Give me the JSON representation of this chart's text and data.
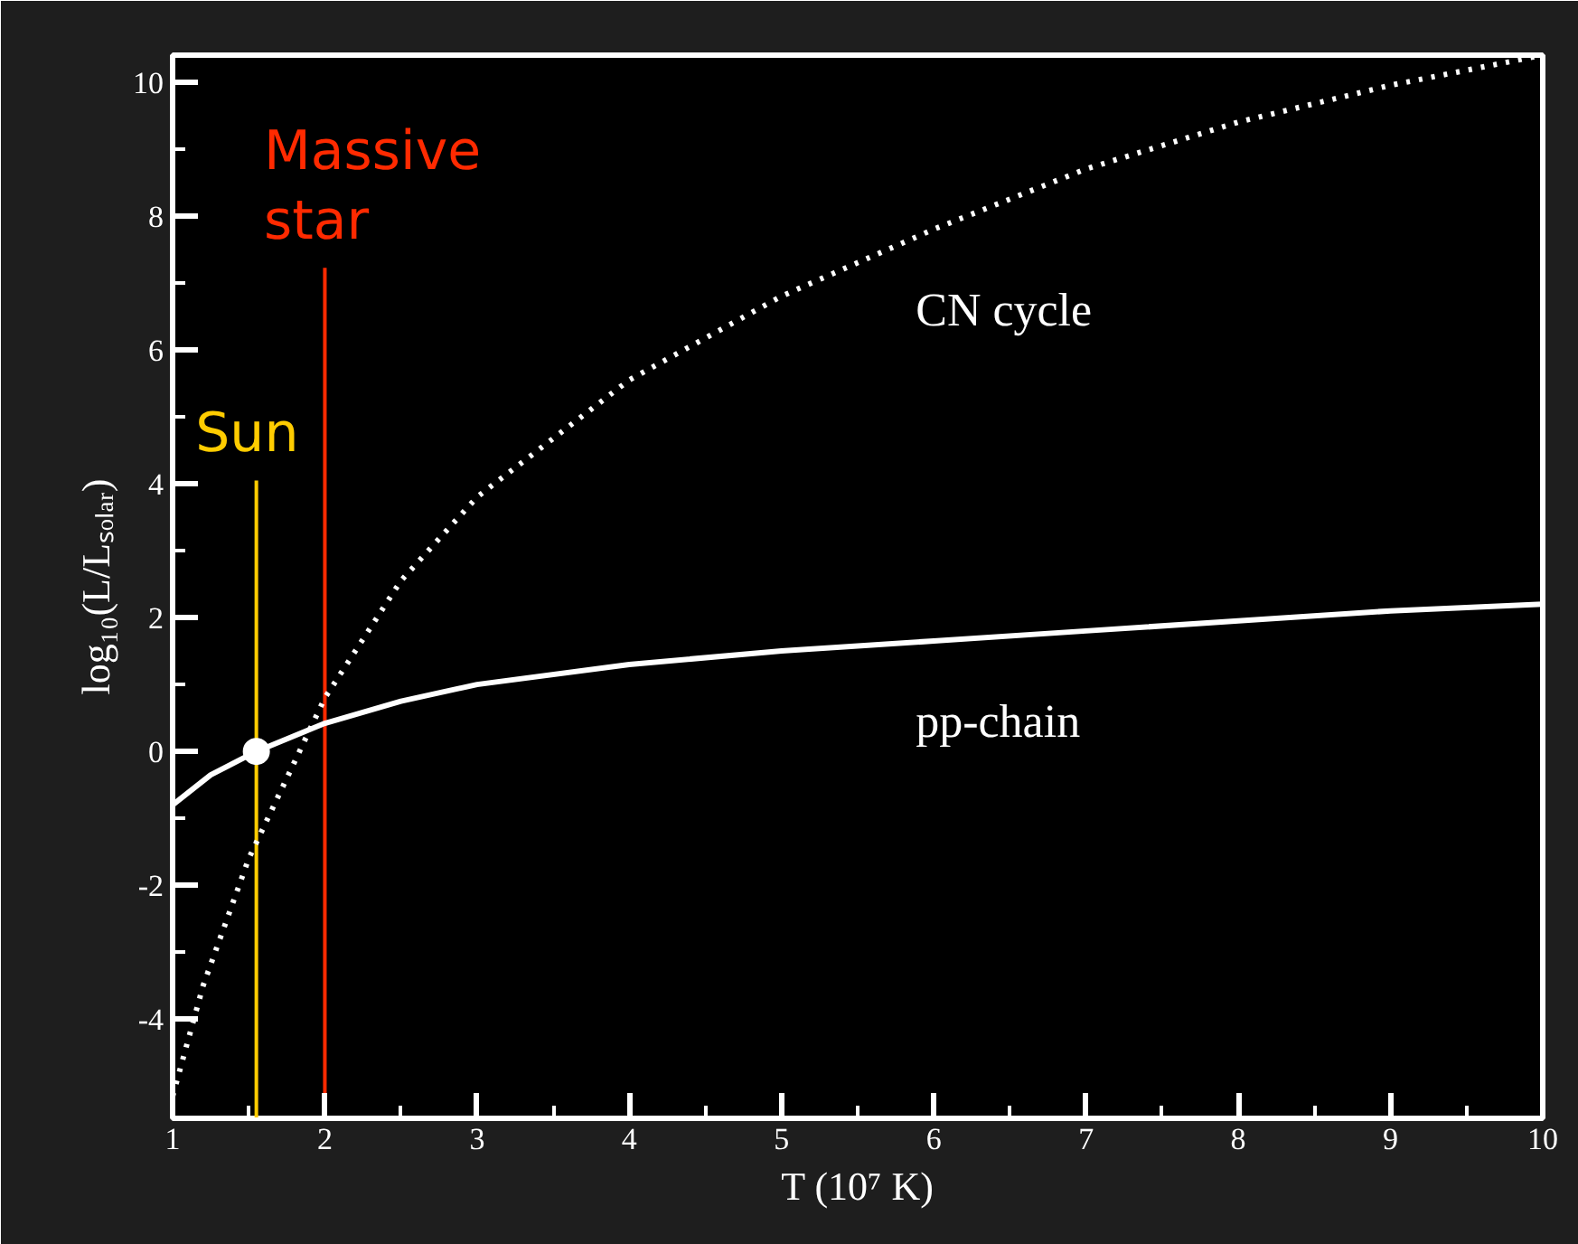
{
  "chart_data": {
    "type": "line",
    "xlabel": "T (10⁷ K)",
    "ylabel": "log₁₀(L/Lₛₒₗₐᵣ)",
    "xlim": [
      1,
      10
    ],
    "ylim": [
      -5.48,
      10.4
    ],
    "xticks": [
      1,
      2,
      3,
      4,
      5,
      6,
      7,
      8,
      9,
      10
    ],
    "yticks": [
      -4,
      -2,
      0,
      2,
      4,
      6,
      8,
      10
    ],
    "grid": false,
    "legend": false,
    "series": [
      {
        "name": "CN cycle",
        "color": "#ffffff",
        "line_style": "dotted",
        "marker": "none",
        "x": [
          1,
          1.2,
          1.5,
          2,
          2.5,
          3,
          4,
          5,
          6,
          7,
          8,
          9,
          10
        ],
        "values": [
          -5.15,
          -3.5,
          -1.6,
          0.8,
          2.55,
          3.8,
          5.55,
          6.8,
          7.8,
          8.7,
          9.4,
          9.95,
          10.4
        ]
      },
      {
        "name": "pp-chain",
        "color": "#ffffff",
        "line_style": "solid",
        "marker": "none",
        "x": [
          1,
          1.25,
          1.55,
          2,
          2.5,
          3,
          4,
          5,
          6,
          7,
          8,
          9,
          10
        ],
        "values": [
          -0.8,
          -0.35,
          0,
          0.42,
          0.75,
          1.0,
          1.3,
          1.5,
          1.65,
          1.8,
          1.95,
          2.1,
          2.2
        ]
      },
      {
        "type": "scatter",
        "color": "#ffffff",
        "marker": "circle",
        "x": [
          1.55
        ],
        "values": [
          0
        ]
      }
    ],
    "ref_lines": [
      {
        "axis": "x",
        "value": 1.55,
        "label": "Sun",
        "color": "#ffcc00"
      },
      {
        "axis": "x",
        "value": 2,
        "label": "Massive star",
        "color": "#ff2a00"
      }
    ]
  }
}
